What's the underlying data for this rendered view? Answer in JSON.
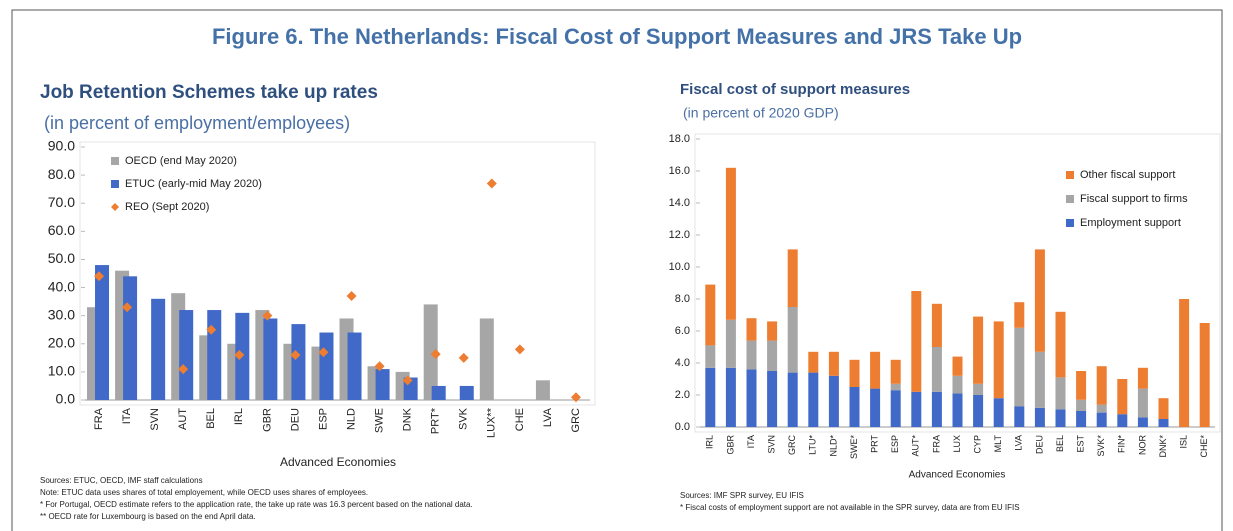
{
  "figure_title": "Figure 6. The Netherlands: Fiscal Cost of Support Measures and JRS Take Up",
  "chart_data": [
    {
      "type": "bar",
      "title": "Job Retention Schemes take up rates",
      "subtitle": "(in percent of employment/employees)",
      "x_label": "Advanced Economies",
      "categories": [
        "FRA",
        "ITA",
        "SVN",
        "AUT",
        "BEL",
        "IRL",
        "GBR",
        "DEU",
        "ESP",
        "NLD",
        "SWE",
        "DNK",
        "PRT*",
        "SVK",
        "LUX**",
        "CHE",
        "LVA",
        "GRC"
      ],
      "series": [
        {
          "name": "OECD (end May 2020)",
          "type": "bar",
          "color": "#a6a6a6",
          "values": [
            33,
            46,
            null,
            38,
            23,
            20,
            32,
            20,
            19,
            29,
            12,
            10,
            34,
            null,
            29,
            null,
            7,
            null
          ]
        },
        {
          "name": "ETUC (early-mid May 2020)",
          "type": "bar",
          "color": "#4169c8",
          "values": [
            48,
            44,
            36,
            32,
            32,
            31,
            29,
            27,
            24,
            24,
            11,
            8,
            5,
            5,
            null,
            null,
            null,
            null
          ]
        },
        {
          "name": "REO (Sept 2020)",
          "type": "scatter",
          "color": "#ed7d31",
          "values": [
            44,
            33,
            null,
            11,
            25,
            16,
            30,
            16,
            17,
            37,
            12,
            7,
            16.3,
            15,
            77,
            18,
            null,
            1
          ]
        }
      ],
      "ylim": [
        0,
        90
      ],
      "yticks": [
        {
          "value": 0,
          "label": "0.0"
        },
        {
          "value": 10,
          "label": "10.0"
        },
        {
          "value": 20,
          "label": "20.0"
        },
        {
          "value": 30,
          "label": "30.0"
        },
        {
          "value": 40,
          "label": "40.0"
        },
        {
          "value": 50,
          "label": "50.0"
        },
        {
          "value": 60,
          "label": "60.0"
        },
        {
          "value": 70,
          "label": "70.0"
        },
        {
          "value": 80,
          "label": "80.0"
        },
        {
          "value": 90,
          "label": "90.0"
        }
      ],
      "notes": [
        "Sources: ETUC, OECD, IMF staff calculations",
        "Note: ETUC data uses shares of total employement, while OECD uses shares of employees.",
        "* For Portugal, OECD estimate refers to the application rate, the take up rate was 16.3 percent based on the national data.",
        "** OECD rate for Luxembourg is based on the end April data."
      ]
    },
    {
      "type": "stacked_bar",
      "title": "Fiscal cost of support measures",
      "subtitle": "(in percent of 2020 GDP)",
      "x_label": "Advanced Economies",
      "categories": [
        "IRL",
        "GBR",
        "ITA",
        "SVN",
        "GRC",
        "LTU*",
        "NLD*",
        "SWE*",
        "PRT",
        "ESP",
        "AUT*",
        "FRA",
        "LUX",
        "CYP",
        "MLT",
        "LVA",
        "DEU",
        "BEL",
        "EST",
        "SVK*",
        "FIN*",
        "NOR",
        "DNK*",
        "ISL",
        "CHE*"
      ],
      "series": [
        {
          "name": "Employment support",
          "color": "#4169c8",
          "values": [
            3.7,
            3.7,
            3.6,
            3.5,
            3.4,
            3.4,
            3.2,
            2.5,
            2.4,
            2.3,
            2.2,
            2.2,
            2.1,
            2.0,
            1.8,
            1.3,
            1.2,
            1.1,
            1.0,
            0.9,
            0.8,
            0.6,
            0.5,
            0,
            0
          ]
        },
        {
          "name": "Fiscal support to firms",
          "color": "#a6a6a6",
          "values": [
            1.4,
            3.0,
            1.8,
            1.9,
            4.1,
            0,
            0,
            0,
            0,
            0.4,
            0,
            2.8,
            1.1,
            0.7,
            0,
            4.9,
            3.5,
            2.0,
            0.7,
            0.5,
            0,
            1.8,
            0,
            0,
            0
          ]
        },
        {
          "name": "Other fiscal support",
          "color": "#ed7d31",
          "values": [
            3.8,
            9.5,
            1.4,
            1.2,
            3.6,
            1.3,
            1.5,
            1.7,
            2.3,
            1.5,
            6.3,
            2.7,
            1.2,
            4.2,
            4.8,
            1.6,
            6.4,
            4.1,
            1.8,
            2.4,
            2.2,
            1.3,
            1.3,
            8.0,
            6.5
          ]
        }
      ],
      "ylim": [
        0,
        18
      ],
      "yticks": [
        {
          "value": 0,
          "label": "0.0"
        },
        {
          "value": 2,
          "label": "2.0"
        },
        {
          "value": 4,
          "label": "4.0"
        },
        {
          "value": 6,
          "label": "6.0"
        },
        {
          "value": 8,
          "label": "8.0"
        },
        {
          "value": 10,
          "label": "10.0"
        },
        {
          "value": 12,
          "label": "12.0"
        },
        {
          "value": 14,
          "label": "14.0"
        },
        {
          "value": 16,
          "label": "16.0"
        },
        {
          "value": 18,
          "label": "18.0"
        }
      ],
      "notes": [
        "Sources: IMF SPR survey, EU IFIS",
        "* Fiscal costs of employment support are not available in the SPR survey, data are from EU IFIS"
      ]
    }
  ]
}
